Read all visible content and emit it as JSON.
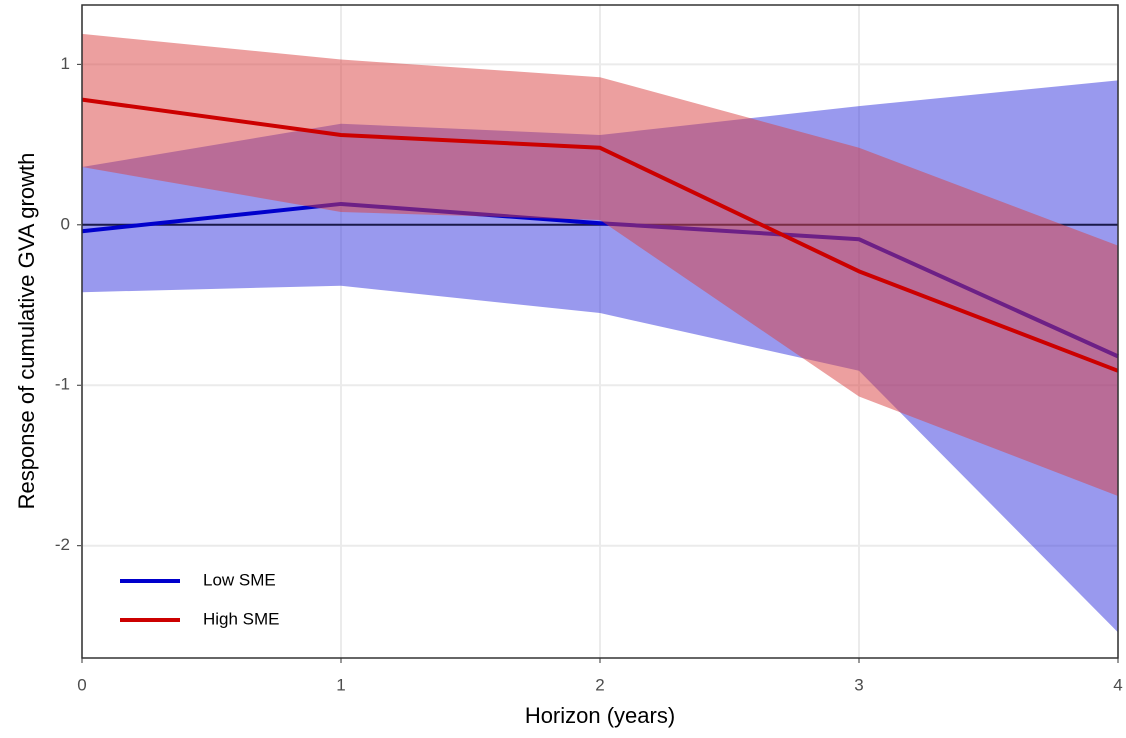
{
  "chart_data": {
    "type": "line_band",
    "x_label": "Horizon (years)",
    "y_label": "Response of cumulative GVA growth",
    "x": [
      0,
      1,
      2,
      3,
      4
    ],
    "series": [
      {
        "name": "Low SME",
        "color": "#0000cc",
        "band_color": "#3333dd",
        "values": [
          -0.04,
          0.13,
          0.01,
          -0.09,
          -0.82
        ],
        "upper": [
          0.36,
          0.63,
          0.56,
          0.74,
          0.9
        ],
        "lower": [
          -0.42,
          -0.38,
          -0.55,
          -0.91,
          -2.54
        ]
      },
      {
        "name": "High SME",
        "color": "#cc0000",
        "band_color": "#d94040",
        "values": [
          0.78,
          0.56,
          0.48,
          -0.29,
          -0.91
        ],
        "upper": [
          1.19,
          1.03,
          0.92,
          0.48,
          -0.13
        ],
        "lower": [
          0.36,
          0.08,
          0.03,
          -1.07,
          -1.69
        ]
      }
    ],
    "hline": 0,
    "xlim": [
      0,
      4
    ],
    "xticks": [
      0,
      1,
      2,
      3,
      4
    ],
    "ylim": [
      -2.7,
      1.37
    ],
    "yticks": [
      -2,
      -1,
      0,
      1
    ],
    "grid": true,
    "legend_position": "bottom-left"
  }
}
